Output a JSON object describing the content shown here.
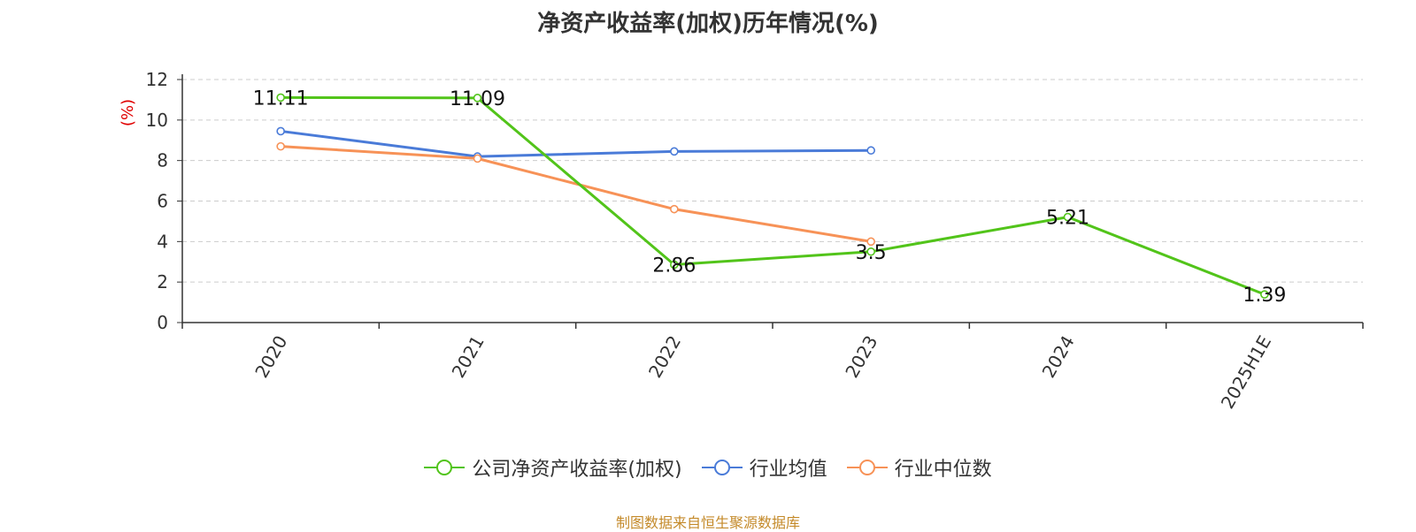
{
  "chart_data": {
    "type": "line",
    "title": "净资产收益率(加权)历年情况(%)",
    "ylabel": "(%)",
    "xlabel": "",
    "categories": [
      "2020",
      "2021",
      "2022",
      "2023",
      "2024",
      "2025H1E"
    ],
    "ylim": [
      0,
      12
    ],
    "yticks": [
      0,
      2,
      4,
      6,
      8,
      10,
      12
    ],
    "grid": true,
    "legend_position": "bottom",
    "series": [
      {
        "name": "公司净资产收益率(加权)",
        "color": "#52c41a",
        "values": [
          11.11,
          11.09,
          2.86,
          3.5,
          5.21,
          1.39
        ],
        "labels": [
          "11.11",
          "11.09",
          "2.86",
          "3.5",
          "5.21",
          "1.39"
        ]
      },
      {
        "name": "行业均值",
        "color": "#4a7bd8",
        "values": [
          9.45,
          8.2,
          8.45,
          8.5,
          null,
          null
        ]
      },
      {
        "name": "行业中位数",
        "color": "#f79257",
        "values": [
          8.7,
          8.1,
          5.6,
          4.0,
          null,
          null
        ]
      }
    ]
  },
  "footer": "制图数据来自恒生聚源数据库"
}
